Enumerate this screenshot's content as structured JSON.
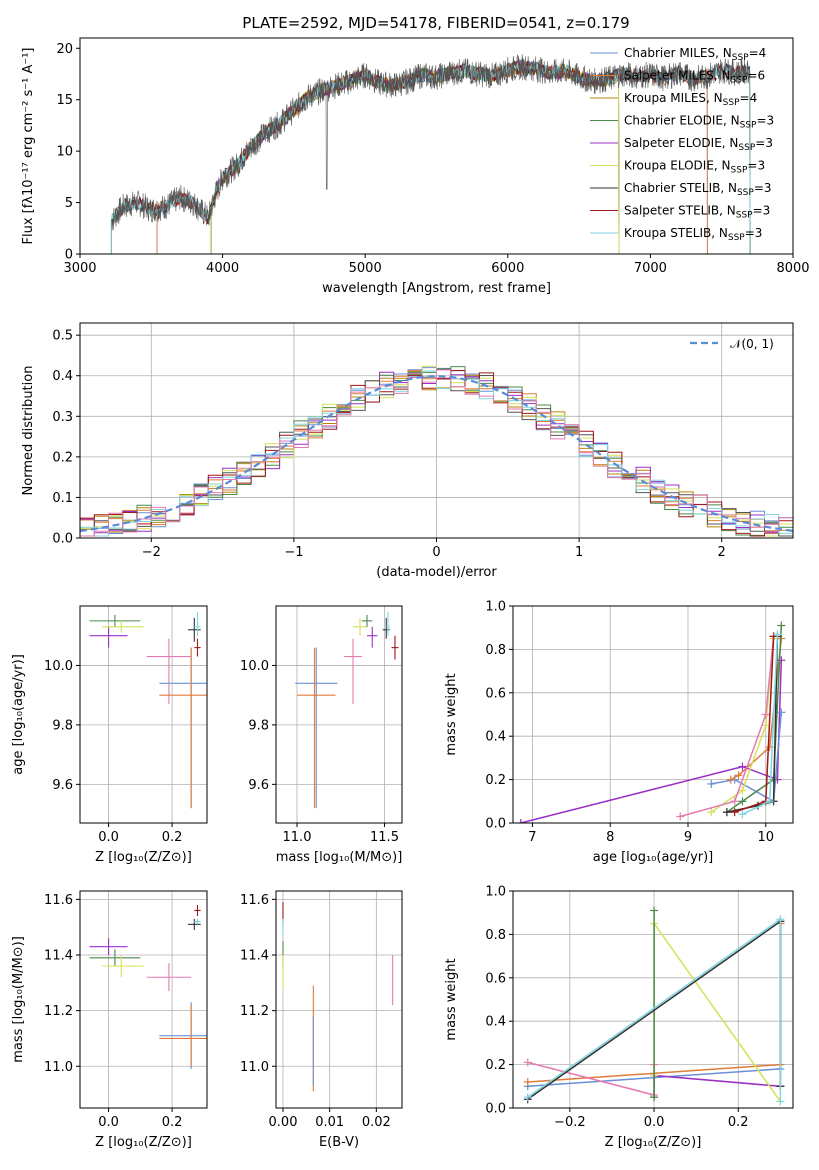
{
  "figure": {
    "title": "PLATE=2592, MJD=54178, FIBERID=0541, z=0.179"
  },
  "chart_data": [
    {
      "id": "spectrum",
      "type": "line",
      "xlabel": "wavelength [Angstrom, rest frame]",
      "ylabel": "Flux [fλ10⁻¹⁷ erg cm⁻² s⁻¹ A⁻¹]",
      "xlim": [
        3000,
        8000
      ],
      "ylim": [
        0,
        21
      ],
      "xticks": [
        3000,
        4000,
        5000,
        6000,
        7000,
        8000
      ],
      "yticks": [
        0,
        5,
        10,
        15,
        20
      ],
      "grid": false,
      "legend_position": "top-right",
      "observed": {
        "color": "#555555",
        "x": [
          3220,
          3300,
          3400,
          3500,
          3600,
          3700,
          3800,
          3900,
          3950,
          4000,
          4100,
          4200,
          4300,
          4400,
          4500,
          4600,
          4700,
          4800,
          4900,
          5000,
          5100,
          5200,
          5300,
          5400,
          5500,
          5600,
          5700,
          5800,
          5900,
          6000,
          6100,
          6200,
          6300,
          6400,
          6500,
          6600,
          6700,
          6800,
          6900,
          7000,
          7100,
          7200,
          7300,
          7400,
          7500,
          7600,
          7700
        ],
        "y": [
          3.2,
          4.6,
          5.0,
          4.3,
          4.6,
          5.5,
          4.9,
          3.5,
          5.8,
          7.4,
          8.6,
          10.4,
          11.8,
          12.7,
          14.0,
          15.3,
          15.9,
          16.4,
          16.8,
          17.4,
          16.6,
          16.4,
          16.8,
          17.4,
          17.2,
          17.6,
          17.8,
          17.5,
          17.3,
          17.9,
          18.2,
          18.0,
          17.6,
          17.8,
          17.2,
          16.8,
          17.0,
          17.5,
          17.3,
          17.4,
          17.1,
          17.6,
          17.0,
          17.3,
          17.9,
          17.6,
          17.9
        ]
      },
      "series": [
        {
          "name": "Chabrier MILES, N_SSP=4",
          "color": "#6b8fd6",
          "xmin": 3540,
          "xmax": 7400
        },
        {
          "name": "Salpeter MILES, N_SSP=6",
          "color": "#e07b39",
          "xmin": 3540,
          "xmax": 7400
        },
        {
          "name": "Kroupa MILES, N_SSP=4",
          "color": "#b8860b",
          "xmin": 3920,
          "xmax": 6780
        },
        {
          "name": "Chabrier ELODIE, N_SSP=3",
          "color": "#4a8a4a",
          "xmin": 3920,
          "xmax": 6780
        },
        {
          "name": "Salpeter ELODIE, N_SSP=3",
          "color": "#9b30c4",
          "xmin": 3920,
          "xmax": 6780
        },
        {
          "name": "Kroupa ELODIE, N_SSP=3",
          "color": "#d4e157",
          "xmin": 3920,
          "xmax": 6780
        },
        {
          "name": "Chabrier STELIB, N_SSP=3",
          "color": "#333333",
          "xmin": 3220,
          "xmax": 7700
        },
        {
          "name": "Salpeter STELIB, N_SSP=3",
          "color": "#a01818",
          "xmin": 3220,
          "xmax": 7700
        },
        {
          "name": "Kroupa STELIB, N_SSP=3",
          "color": "#7fd6e0",
          "xmin": 3220,
          "xmax": 7700
        }
      ]
    },
    {
      "id": "residuals",
      "type": "line",
      "xlabel": "(data-model)/error",
      "ylabel": "Normed distribution",
      "xlim": [
        -2.5,
        2.5
      ],
      "ylim": [
        0,
        0.53
      ],
      "xticks": [
        -2,
        -1,
        0,
        1,
        2
      ],
      "yticks": [
        0.0,
        0.1,
        0.2,
        0.3,
        0.4,
        0.5
      ],
      "grid": true,
      "legend_position": "top-right",
      "reference": {
        "name": "N(0,1)",
        "label": "𝒩(0, 1)",
        "color": "#5b8bd4"
      },
      "histogram": {
        "bin_width": 0.1,
        "colors": [
          "#6b8fd6",
          "#e07b39",
          "#b8860b",
          "#4a8a4a",
          "#9b30c4",
          "#d4e157",
          "#555555",
          "#a01818",
          "#7fd6e0",
          "#e57ab0"
        ]
      }
    },
    {
      "id": "age-vs-Z",
      "type": "scatter",
      "xlabel": "Z [log₁₀(Z/Z⊙)]",
      "ylabel": "age  [log₁₀(age/yr)]",
      "xlim": [
        -0.09,
        0.31
      ],
      "ylim": [
        9.47,
        10.2
      ],
      "xticks": [
        0.0,
        0.2
      ],
      "yticks": [
        9.6,
        9.8,
        10.0
      ],
      "grid": true,
      "points": [
        {
          "x": 0.0,
          "y": 10.1,
          "xerr": [
            0.06,
            0.06
          ],
          "yerr": [
            0.04,
            0.03
          ],
          "color": "#9b30c4"
        },
        {
          "x": 0.02,
          "y": 10.15,
          "xerr": [
            0.08,
            0.08
          ],
          "yerr": [
            0.02,
            0.02
          ],
          "color": "#4a8a4a"
        },
        {
          "x": 0.04,
          "y": 10.13,
          "xerr": [
            0.06,
            0.07
          ],
          "yerr": [
            0.02,
            0.02
          ],
          "color": "#d4e157"
        },
        {
          "x": 0.19,
          "y": 10.03,
          "xerr": [
            0.07,
            0.07
          ],
          "yerr": [
            0.16,
            0.06
          ],
          "color": "#e57ab0"
        },
        {
          "x": 0.26,
          "y": 9.94,
          "xerr": [
            0.1,
            0.05
          ],
          "yerr": [
            0.42,
            0.12
          ],
          "color": "#6b8fd6"
        },
        {
          "x": 0.26,
          "y": 9.9,
          "xerr": [
            0.1,
            0.05
          ],
          "yerr": [
            0.38,
            0.16
          ],
          "color": "#e07b39"
        },
        {
          "x": 0.27,
          "y": 10.12,
          "xerr": [
            0.02,
            0.02
          ],
          "yerr": [
            0.04,
            0.04
          ],
          "color": "#333333"
        },
        {
          "x": 0.28,
          "y": 10.13,
          "xerr": [
            0.01,
            0.01
          ],
          "yerr": [
            0.03,
            0.05
          ],
          "color": "#7fd6e0"
        },
        {
          "x": 0.28,
          "y": 10.06,
          "xerr": [
            0.01,
            0.01
          ],
          "yerr": [
            0.03,
            0.03
          ],
          "color": "#a01818"
        }
      ]
    },
    {
      "id": "age-vs-mass",
      "type": "scatter",
      "xlabel": "mass [log₁₀(M/M⊙)]",
      "ylabel": "",
      "xlim": [
        10.88,
        11.6
      ],
      "ylim": [
        9.47,
        10.2
      ],
      "xticks": [
        11.0,
        11.5
      ],
      "yticks": [
        9.6,
        9.8,
        10.0
      ],
      "grid": true,
      "points": [
        {
          "x": 11.11,
          "y": 9.94,
          "xerr": [
            0.12,
            0.12
          ],
          "yerr": [
            0.42,
            0.12
          ],
          "color": "#6b8fd6"
        },
        {
          "x": 11.1,
          "y": 9.9,
          "xerr": [
            0.1,
            0.12
          ],
          "yerr": [
            0.38,
            0.16
          ],
          "color": "#e07b39"
        },
        {
          "x": 11.32,
          "y": 10.03,
          "xerr": [
            0.05,
            0.05
          ],
          "yerr": [
            0.16,
            0.06
          ],
          "color": "#e57ab0"
        },
        {
          "x": 11.36,
          "y": 10.13,
          "xerr": [
            0.04,
            0.04
          ],
          "yerr": [
            0.03,
            0.03
          ],
          "color": "#d4e157"
        },
        {
          "x": 11.4,
          "y": 10.15,
          "xerr": [
            0.03,
            0.03
          ],
          "yerr": [
            0.02,
            0.02
          ],
          "color": "#4a8a4a"
        },
        {
          "x": 11.43,
          "y": 10.1,
          "xerr": [
            0.03,
            0.03
          ],
          "yerr": [
            0.04,
            0.03
          ],
          "color": "#9b30c4"
        },
        {
          "x": 11.51,
          "y": 10.12,
          "xerr": [
            0.02,
            0.02
          ],
          "yerr": [
            0.03,
            0.04
          ],
          "color": "#333333"
        },
        {
          "x": 11.52,
          "y": 10.13,
          "xerr": [
            0.01,
            0.01
          ],
          "yerr": [
            0.03,
            0.05
          ],
          "color": "#7fd6e0"
        },
        {
          "x": 11.56,
          "y": 10.06,
          "xerr": [
            0.02,
            0.02
          ],
          "yerr": [
            0.04,
            0.04
          ],
          "color": "#a01818"
        }
      ]
    },
    {
      "id": "mass-weight-vs-age",
      "type": "line",
      "xlabel": "age  [log₁₀(age/yr)]",
      "ylabel": "mass weight",
      "xlim": [
        6.75,
        10.35
      ],
      "ylim": [
        0,
        1.0
      ],
      "xticks": [
        7,
        8,
        9,
        10
      ],
      "yticks": [
        0.0,
        0.2,
        0.4,
        0.6,
        0.8,
        1.0
      ],
      "grid": true,
      "series": [
        {
          "color": "#9b30c4",
          "x": [
            6.85,
            9.7,
            10.15,
            10.2
          ],
          "y": [
            0.0,
            0.26,
            0.2,
            0.75
          ]
        },
        {
          "color": "#6b8fd6",
          "x": [
            9.3,
            9.6,
            10.1,
            10.2
          ],
          "y": [
            0.18,
            0.2,
            0.1,
            0.51
          ]
        },
        {
          "color": "#e07b39",
          "x": [
            9.55,
            9.65,
            10.05,
            10.2
          ],
          "y": [
            0.2,
            0.22,
            0.35,
            0.85
          ]
        },
        {
          "color": "#4a8a4a",
          "x": [
            9.5,
            9.7,
            10.1,
            10.2
          ],
          "y": [
            0.05,
            0.1,
            0.2,
            0.91
          ]
        },
        {
          "color": "#d4e157",
          "x": [
            9.3,
            9.7,
            10.0,
            10.1
          ],
          "y": [
            0.05,
            0.15,
            0.45,
            0.85
          ]
        },
        {
          "color": "#e57ab0",
          "x": [
            8.9,
            9.6,
            10.0,
            10.1
          ],
          "y": [
            0.03,
            0.1,
            0.5,
            0.86
          ]
        },
        {
          "color": "#333333",
          "x": [
            9.5,
            9.9,
            10.1,
            10.15
          ],
          "y": [
            0.05,
            0.08,
            0.1,
            0.86
          ]
        },
        {
          "color": "#a01818",
          "x": [
            9.6,
            10.0,
            10.1
          ],
          "y": [
            0.05,
            0.1,
            0.86
          ]
        },
        {
          "color": "#7fd6e0",
          "x": [
            9.7,
            10.05,
            10.15
          ],
          "y": [
            0.04,
            0.1,
            0.87
          ]
        }
      ]
    },
    {
      "id": "mass-vs-Z",
      "type": "scatter",
      "xlabel": "Z [log₁₀(Z/Z⊙)]",
      "ylabel": "mass [log₁₀(M/M⊙)]",
      "xlim": [
        -0.09,
        0.31
      ],
      "ylim": [
        10.85,
        11.63
      ],
      "xticks": [
        0.0,
        0.2
      ],
      "yticks": [
        11.0,
        11.2,
        11.4,
        11.6
      ],
      "grid": true,
      "points": [
        {
          "x": 0.0,
          "y": 11.43,
          "xerr": [
            0.06,
            0.06
          ],
          "yerr": [
            0.03,
            0.03
          ],
          "color": "#9b30c4"
        },
        {
          "x": 0.02,
          "y": 11.39,
          "xerr": [
            0.08,
            0.08
          ],
          "yerr": [
            0.03,
            0.03
          ],
          "color": "#4a8a4a"
        },
        {
          "x": 0.04,
          "y": 11.36,
          "xerr": [
            0.06,
            0.07
          ],
          "yerr": [
            0.04,
            0.04
          ],
          "color": "#d4e157"
        },
        {
          "x": 0.19,
          "y": 11.32,
          "xerr": [
            0.07,
            0.07
          ],
          "yerr": [
            0.05,
            0.05
          ],
          "color": "#e57ab0"
        },
        {
          "x": 0.26,
          "y": 11.11,
          "xerr": [
            0.1,
            0.05
          ],
          "yerr": [
            0.12,
            0.12
          ],
          "color": "#6b8fd6"
        },
        {
          "x": 0.26,
          "y": 11.1,
          "xerr": [
            0.1,
            0.05
          ],
          "yerr": [
            0.1,
            0.12
          ],
          "color": "#e07b39"
        },
        {
          "x": 0.27,
          "y": 11.51,
          "xerr": [
            0.02,
            0.02
          ],
          "yerr": [
            0.02,
            0.02
          ],
          "color": "#333333"
        },
        {
          "x": 0.28,
          "y": 11.52,
          "xerr": [
            0.01,
            0.01
          ],
          "yerr": [
            0.01,
            0.01
          ],
          "color": "#7fd6e0"
        },
        {
          "x": 0.28,
          "y": 11.56,
          "xerr": [
            0.01,
            0.01
          ],
          "yerr": [
            0.02,
            0.02
          ],
          "color": "#a01818"
        }
      ]
    },
    {
      "id": "mass-vs-EBV",
      "type": "scatter",
      "xlabel": "E(B-V)",
      "ylabel": "",
      "xlim": [
        -0.0015,
        0.0255
      ],
      "ylim": [
        10.85,
        11.63
      ],
      "xticks": [
        0.0,
        0.01,
        0.02
      ],
      "yticks": [
        11.0,
        11.2,
        11.4,
        11.6
      ],
      "grid": true,
      "points": [
        {
          "x": 0.0,
          "y": 11.55,
          "xerr": [
            0,
            0
          ],
          "yerr": [
            0.04,
            0.04
          ],
          "color": "#a01818"
        },
        {
          "x": 0.0,
          "y": 11.5,
          "xerr": [
            0,
            0
          ],
          "yerr": [
            0.03,
            0.03
          ],
          "color": "#7fd6e0"
        },
        {
          "x": 0.0,
          "y": 11.4,
          "xerr": [
            0,
            0
          ],
          "yerr": [
            0.05,
            0.05
          ],
          "color": "#4a8a4a"
        },
        {
          "x": 0.0,
          "y": 11.34,
          "xerr": [
            0,
            0
          ],
          "yerr": [
            0.06,
            0.06
          ],
          "color": "#d4e157"
        },
        {
          "x": 0.0065,
          "y": 11.11,
          "xerr": [
            0,
            0
          ],
          "yerr": [
            0.2,
            0.18
          ],
          "color": "#e07b39"
        },
        {
          "x": 0.0065,
          "y": 11.08,
          "xerr": [
            0,
            0
          ],
          "yerr": [
            0.15,
            0.1
          ],
          "color": "#6b8fd6"
        },
        {
          "x": 0.0235,
          "y": 11.31,
          "xerr": [
            0,
            0
          ],
          "yerr": [
            0.09,
            0.09
          ],
          "color": "#e57ab0"
        }
      ]
    },
    {
      "id": "mass-weight-vs-Z",
      "type": "line",
      "xlabel": "Z [log₁₀(Z/Z⊙)]",
      "ylabel": "mass weight",
      "xlim": [
        -0.335,
        0.33
      ],
      "ylim": [
        0,
        1.0
      ],
      "xticks": [
        -0.2,
        0.0,
        0.2
      ],
      "yticks": [
        0.0,
        0.2,
        0.4,
        0.6,
        0.8,
        1.0
      ],
      "grid": true,
      "series": [
        {
          "color": "#6b8fd6",
          "x": [
            -0.3,
            0.3,
            0.3
          ],
          "y": [
            0.1,
            0.18,
            0.86
          ]
        },
        {
          "color": "#e07b39",
          "x": [
            -0.3,
            0.3,
            0.3
          ],
          "y": [
            0.12,
            0.2,
            0.85
          ]
        },
        {
          "color": "#e57ab0",
          "x": [
            -0.3,
            0.0,
            0.0
          ],
          "y": [
            0.21,
            0.06,
            0.2
          ]
        },
        {
          "color": "#9b30c4",
          "x": [
            0.0,
            0.0,
            0.3
          ],
          "y": [
            0.05,
            0.15,
            0.1
          ]
        },
        {
          "color": "#d4e157",
          "x": [
            0.0,
            0.0,
            0.3
          ],
          "y": [
            0.15,
            0.85,
            0.03
          ]
        },
        {
          "color": "#4a8a4a",
          "x": [
            0.0,
            0.0
          ],
          "y": [
            0.05,
            0.91
          ]
        },
        {
          "color": "#333333",
          "x": [
            -0.3,
            0.3,
            0.3
          ],
          "y": [
            0.04,
            0.86,
            0.1
          ]
        },
        {
          "color": "#7fd6e0",
          "x": [
            -0.3,
            0.3,
            0.3
          ],
          "y": [
            0.05,
            0.87,
            0.03
          ]
        }
      ]
    }
  ]
}
